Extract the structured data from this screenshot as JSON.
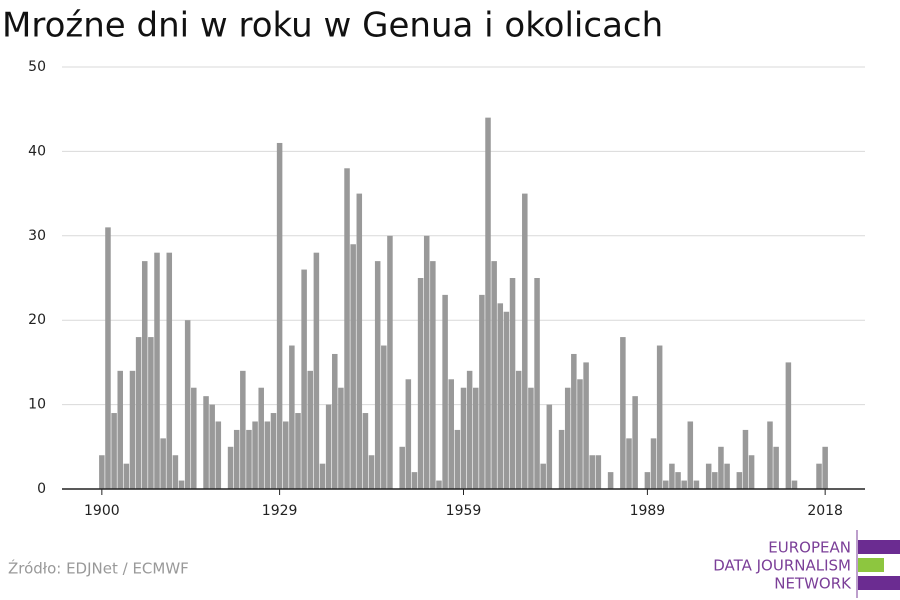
{
  "chart_data": {
    "type": "bar",
    "title": "Mroźne dni w roku w Genua i okolicach",
    "x": [
      1900,
      1901,
      1902,
      1903,
      1904,
      1905,
      1906,
      1907,
      1908,
      1909,
      1910,
      1911,
      1912,
      1913,
      1914,
      1915,
      1916,
      1917,
      1918,
      1919,
      1920,
      1921,
      1922,
      1923,
      1924,
      1925,
      1926,
      1927,
      1928,
      1929,
      1930,
      1931,
      1932,
      1933,
      1934,
      1935,
      1936,
      1937,
      1938,
      1939,
      1940,
      1941,
      1942,
      1943,
      1944,
      1945,
      1946,
      1947,
      1948,
      1949,
      1950,
      1951,
      1952,
      1953,
      1954,
      1955,
      1956,
      1957,
      1958,
      1959,
      1960,
      1961,
      1962,
      1963,
      1964,
      1965,
      1966,
      1967,
      1968,
      1969,
      1970,
      1971,
      1972,
      1973,
      1974,
      1975,
      1976,
      1977,
      1978,
      1979,
      1980,
      1981,
      1982,
      1983,
      1984,
      1985,
      1986,
      1987,
      1988,
      1989,
      1990,
      1991,
      1992,
      1993,
      1994,
      1995,
      1996,
      1997,
      1998,
      1999,
      2000,
      2001,
      2002,
      2003,
      2004,
      2005,
      2006,
      2007,
      2008,
      2009,
      2010,
      2011,
      2012,
      2013,
      2014,
      2015,
      2016,
      2017,
      2018
    ],
    "values": [
      4,
      31,
      9,
      14,
      3,
      14,
      18,
      27,
      18,
      28,
      6,
      28,
      4,
      1,
      20,
      12,
      0,
      11,
      10,
      8,
      0,
      5,
      7,
      14,
      7,
      8,
      12,
      8,
      9,
      41,
      8,
      17,
      9,
      26,
      14,
      28,
      3,
      10,
      16,
      12,
      38,
      29,
      35,
      9,
      4,
      27,
      17,
      30,
      0,
      5,
      13,
      2,
      25,
      30,
      27,
      1,
      23,
      13,
      7,
      12,
      14,
      12,
      23,
      44,
      27,
      22,
      21,
      25,
      14,
      35,
      12,
      25,
      3,
      10,
      0,
      7,
      12,
      16,
      13,
      15,
      4,
      4,
      0,
      2,
      0,
      18,
      6,
      11,
      0,
      2,
      6,
      17,
      1,
      3,
      2,
      1,
      8,
      1,
      0,
      3,
      2,
      5,
      3,
      0,
      2,
      7,
      4,
      0,
      0,
      8,
      5,
      0,
      15,
      1,
      0,
      0,
      0,
      3,
      5
    ],
    "color": "#999999",
    "xlim": [
      1893.5,
      2024.5
    ],
    "xticks": [
      1900,
      1929,
      1959,
      1989,
      2018
    ],
    "ylim": [
      0,
      50
    ],
    "yticks": [
      0,
      10,
      20,
      30,
      40,
      50
    ],
    "grid": true,
    "source": "Źródło: EDJNet / ECMWF",
    "logo": [
      "EUROPEAN",
      "DATA JOURNALISM",
      "NETWORK"
    ]
  }
}
